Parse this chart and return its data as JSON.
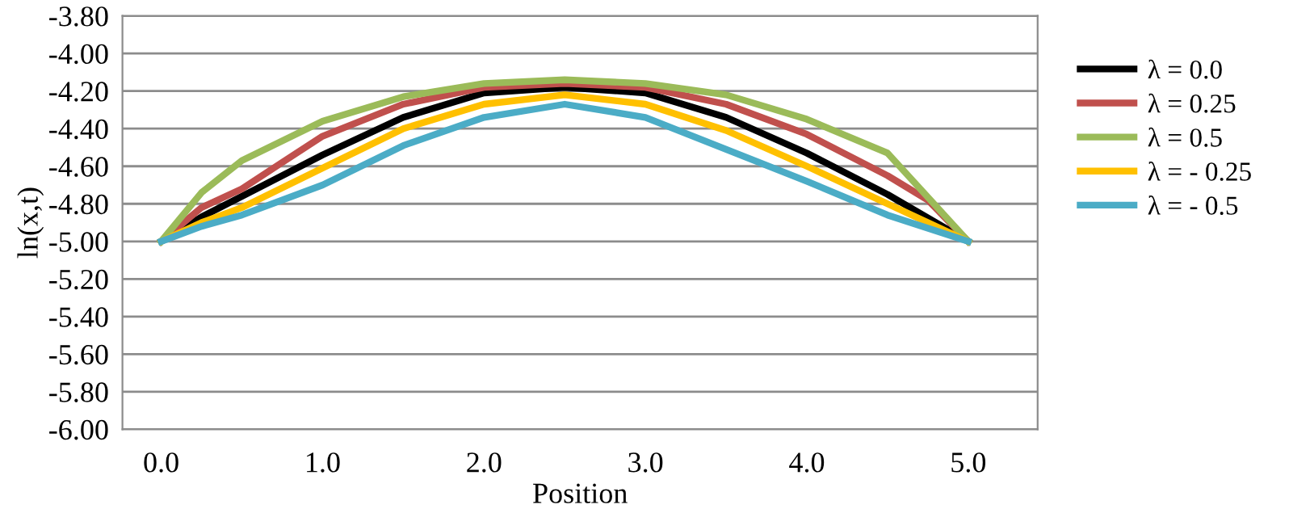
{
  "chart_data": {
    "type": "line",
    "xlabel": "Position",
    "ylabel": "ln(x,t)",
    "xlim": [
      -0.24,
      5.43
    ],
    "ylim": [
      -6.0,
      -3.8
    ],
    "xticks": [
      {
        "value": 0,
        "label": "0.0"
      },
      {
        "value": 1,
        "label": "1.0"
      },
      {
        "value": 2,
        "label": "2.0"
      },
      {
        "value": 3,
        "label": "3.0"
      },
      {
        "value": 4,
        "label": "4.0"
      },
      {
        "value": 5,
        "label": "5.0"
      }
    ],
    "yticks": [
      {
        "value": -6.0,
        "label": "-6.00"
      },
      {
        "value": -5.8,
        "label": "-5.80"
      },
      {
        "value": -5.6,
        "label": "-5.60"
      },
      {
        "value": -5.4,
        "label": "-5.40"
      },
      {
        "value": -5.2,
        "label": "-5.20"
      },
      {
        "value": -5.0,
        "label": "-5.00"
      },
      {
        "value": -4.8,
        "label": "-4.80"
      },
      {
        "value": -4.6,
        "label": "-4.60"
      },
      {
        "value": -4.4,
        "label": "-4.40"
      },
      {
        "value": -4.2,
        "label": "-4.20"
      },
      {
        "value": -4.0,
        "label": "-4.00"
      },
      {
        "value": -3.8,
        "label": "-3.80"
      }
    ],
    "grid": "y",
    "legend": "right",
    "marker": "none",
    "line_style": "solid",
    "series": [
      {
        "name": "λ = 0.0",
        "color": "#000000",
        "x": [
          0,
          0.25,
          0.5,
          1,
          1.5,
          2,
          2.5,
          3,
          3.5,
          4,
          4.5,
          5
        ],
        "values": [
          -5.0,
          -4.87,
          -4.76,
          -4.54,
          -4.34,
          -4.21,
          -4.18,
          -4.21,
          -4.34,
          -4.53,
          -4.75,
          -5.0
        ]
      },
      {
        "name": "λ = 0.25",
        "color": "#c0504d",
        "x": [
          0,
          0.25,
          0.5,
          0.75,
          1,
          1.5,
          2,
          2.5,
          3,
          3.5,
          4,
          4.5,
          4.75,
          5
        ],
        "values": [
          -5.0,
          -4.82,
          -4.72,
          -4.58,
          -4.44,
          -4.27,
          -4.18,
          -4.16,
          -4.18,
          -4.27,
          -4.43,
          -4.65,
          -4.78,
          -5.0
        ]
      },
      {
        "name": "λ = 0.5",
        "color": "#9bbb59",
        "x": [
          0,
          0.25,
          0.5,
          1,
          1.5,
          2,
          2.5,
          3,
          3.5,
          4,
          4.5,
          5
        ],
        "values": [
          -5.0,
          -4.74,
          -4.57,
          -4.36,
          -4.23,
          -4.16,
          -4.14,
          -4.16,
          -4.22,
          -4.35,
          -4.53,
          -5.0
        ]
      },
      {
        "name": "λ = - 0.25",
        "color": "#ffc000",
        "x": [
          0,
          0.25,
          0.5,
          1,
          1.5,
          2,
          2.5,
          3,
          3.5,
          4,
          4.5,
          5
        ],
        "values": [
          -5.0,
          -4.9,
          -4.82,
          -4.61,
          -4.4,
          -4.27,
          -4.22,
          -4.27,
          -4.41,
          -4.6,
          -4.8,
          -5.0
        ]
      },
      {
        "name": "λ = - 0.5",
        "color": "#4bacc6",
        "x": [
          0,
          0.25,
          0.5,
          1,
          1.5,
          2,
          2.5,
          3,
          3.5,
          4,
          4.5,
          5
        ],
        "values": [
          -5.0,
          -4.92,
          -4.86,
          -4.7,
          -4.49,
          -4.34,
          -4.27,
          -4.34,
          -4.51,
          -4.68,
          -4.86,
          -5.0
        ]
      }
    ]
  }
}
